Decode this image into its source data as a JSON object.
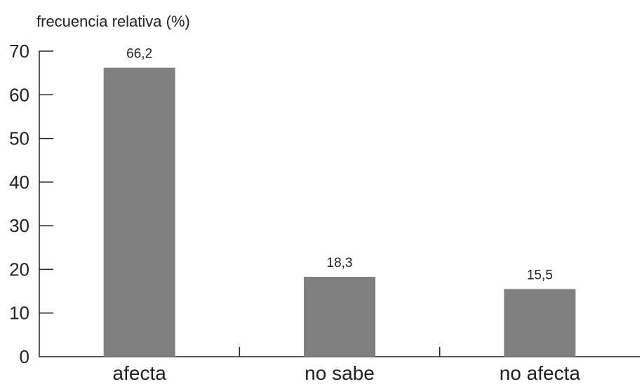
{
  "chart_data": {
    "type": "bar",
    "ylabel": "frecuencia relativa (%)",
    "xlabel": "",
    "categories": [
      "afecta",
      "no sabe",
      "no afecta"
    ],
    "values": [
      66.2,
      18.3,
      15.5
    ],
    "data_labels": [
      "66,2",
      "18,3",
      "15,5"
    ],
    "ylim": [
      0,
      70
    ],
    "yticks": [
      0,
      10,
      20,
      30,
      40,
      50,
      60,
      70
    ],
    "grid": false,
    "legend": "none",
    "bar_color": "#808080",
    "axis_color": "#231f20"
  }
}
